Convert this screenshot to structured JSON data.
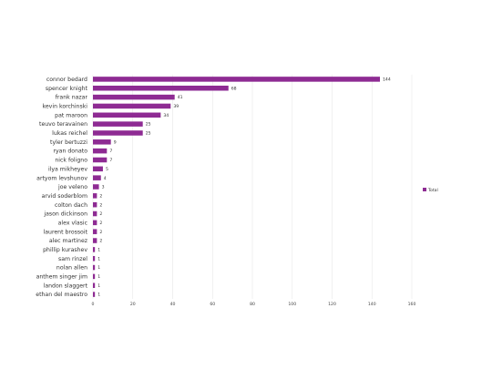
{
  "chart_data": {
    "type": "bar",
    "orientation": "horizontal",
    "categories": [
      "connor bedard",
      "spencer knight",
      "frank nazar",
      "kevin korchinski",
      "pat maroon",
      "teuvo teravainen",
      "lukas reichel",
      "tyler bertuzzi",
      "ryan donato",
      "nick foligno",
      "ilya mikheyev",
      "artyom levshunov",
      "joe veleno",
      "arvid soderblom",
      "colton dach",
      "jason dickinson",
      "alex vlasic",
      "laurent brossoit",
      "alec martinez",
      "phillip kurashev",
      "sam rinzel",
      "nolan allen",
      "anthem singer jim",
      "landon slaggert",
      "ethan del maestro"
    ],
    "series": [
      {
        "name": "Total",
        "values": [
          144,
          68,
          41,
          39,
          34,
          25,
          25,
          9,
          7,
          7,
          5,
          4,
          3,
          2,
          2,
          2,
          2,
          2,
          2,
          1,
          1,
          1,
          1,
          1,
          1
        ]
      }
    ],
    "xlim": [
      0,
      160
    ],
    "xticks": [
      "0",
      "20",
      "40",
      "60",
      "80",
      "100",
      "120",
      "140",
      "160"
    ],
    "grid": true,
    "legend_position": "right",
    "bar_color": "#8e2b93"
  }
}
